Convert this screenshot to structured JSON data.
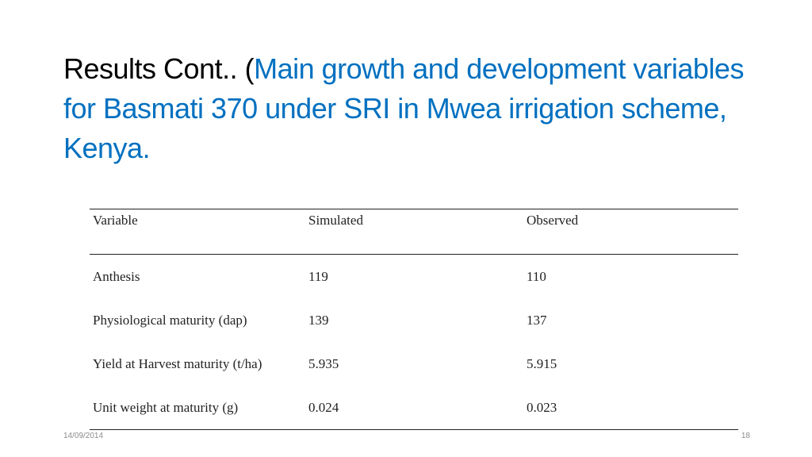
{
  "slide": {
    "title_black": "Results Cont.. (",
    "title_blue": "Main growth and development variables for Basmati 370 under SRI in Mwea irrigation scheme, Kenya.",
    "title_color": "#0070C0"
  },
  "table": {
    "headers": [
      "Variable",
      "Simulated",
      "Observed"
    ],
    "rows": [
      [
        "Anthesis",
        "119",
        "110"
      ],
      [
        "Physiological maturity (dap)",
        "139",
        "137"
      ],
      [
        "Yield at Harvest maturity (t/ha)",
        "5.935",
        "5.915"
      ],
      [
        "Unit weight at maturity (g)",
        "0.024",
        "0.023"
      ]
    ]
  },
  "footer": {
    "date": "14/09/2014",
    "page_number": "18"
  }
}
